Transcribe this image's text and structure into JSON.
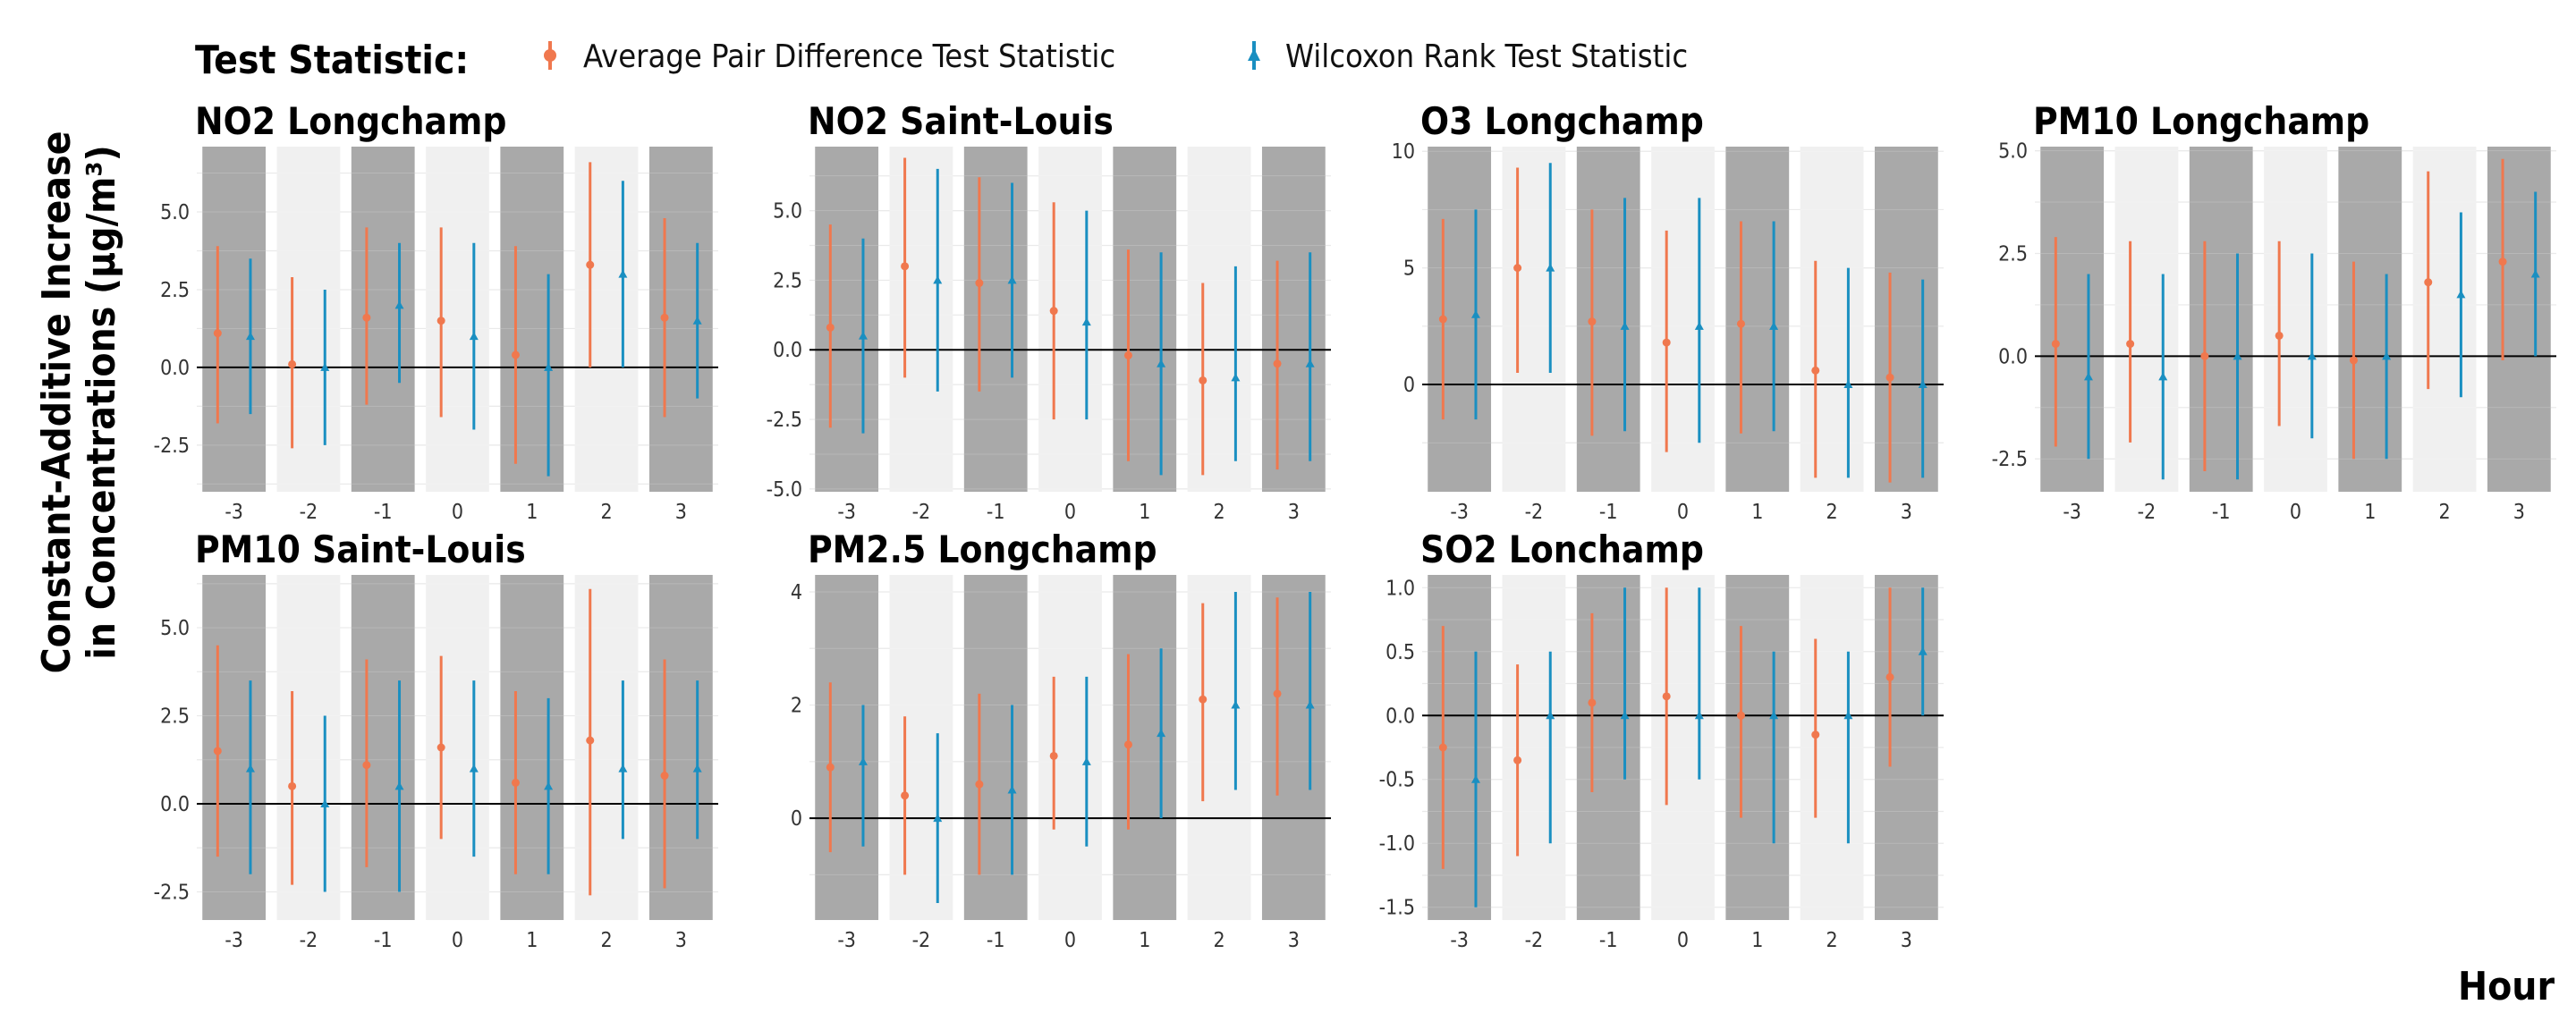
{
  "legend": {
    "title": "Test Statistic:",
    "items": [
      {
        "label": "Average Pair Difference Test Statistic",
        "color": "#F0784E",
        "marker": "circle"
      },
      {
        "label": "Wilcoxon Rank Test Statistic",
        "color": "#1A8FC1",
        "marker": "triangle"
      }
    ]
  },
  "axes": {
    "ylabel_line1": "Constant-Additive Increase",
    "ylabel_line2": "in Concentrations (µg/m³)",
    "xlabel": "Hour"
  },
  "colors": {
    "band_dark": "#A9A9A9",
    "band_light": "#F0F0F0",
    "apd": "#F0784E",
    "wilcoxon": "#1A8FC1"
  },
  "chart_data": [
    {
      "type": "errorbar",
      "title": "NO2 Longchamp",
      "x": [
        "-3",
        "-2",
        "-1",
        "0",
        "1",
        "2",
        "3"
      ],
      "ylim": [
        -4,
        7.1
      ],
      "yticks": [
        -2.5,
        0,
        2.5,
        5
      ],
      "ytick_labels": [
        "-2.5",
        "0.0",
        "2.5",
        "5.0"
      ],
      "series": [
        {
          "name": "Average Pair Difference Test Statistic",
          "estimate": [
            1.1,
            0.1,
            1.6,
            1.5,
            0.4,
            3.3,
            1.6
          ],
          "lower": [
            -1.8,
            -2.6,
            -1.2,
            -1.6,
            -3.1,
            0.0,
            -1.6
          ],
          "upper": [
            3.9,
            2.9,
            4.5,
            4.5,
            3.9,
            6.6,
            4.8
          ]
        },
        {
          "name": "Wilcoxon Rank Test Statistic",
          "estimate": [
            1.0,
            0.0,
            2.0,
            1.0,
            0.0,
            3.0,
            1.5
          ],
          "lower": [
            -1.5,
            -2.5,
            -0.5,
            -2.0,
            -3.5,
            0.0,
            -1.0
          ],
          "upper": [
            3.5,
            2.5,
            4.0,
            4.0,
            3.0,
            6.0,
            4.0
          ]
        }
      ]
    },
    {
      "type": "errorbar",
      "title": "NO2 Saint-Louis",
      "x": [
        "-3",
        "-2",
        "-1",
        "0",
        "1",
        "2",
        "3"
      ],
      "ylim": [
        -5.1,
        7.3
      ],
      "yticks": [
        -5,
        -2.5,
        0,
        2.5,
        5
      ],
      "ytick_labels": [
        "-5.0",
        "-2.5",
        "0.0",
        "2.5",
        "5.0"
      ],
      "series": [
        {
          "name": "Average Pair Difference Test Statistic",
          "estimate": [
            0.8,
            3.0,
            2.4,
            1.4,
            -0.2,
            -1.1,
            -0.5
          ],
          "lower": [
            -2.8,
            -1.0,
            -1.5,
            -2.5,
            -4.0,
            -4.5,
            -4.3
          ],
          "upper": [
            4.5,
            6.9,
            6.2,
            5.3,
            3.6,
            2.4,
            3.2
          ]
        },
        {
          "name": "Wilcoxon Rank Test Statistic",
          "estimate": [
            0.5,
            2.5,
            2.5,
            1.0,
            -0.5,
            -1.0,
            -0.5
          ],
          "lower": [
            -3.0,
            -1.5,
            -1.0,
            -2.5,
            -4.5,
            -4.0,
            -4.0
          ],
          "upper": [
            4.0,
            6.5,
            6.0,
            5.0,
            3.5,
            3.0,
            3.5
          ]
        }
      ]
    },
    {
      "type": "errorbar",
      "title": "O3 Longchamp",
      "x": [
        "-3",
        "-2",
        "-1",
        "0",
        "1",
        "2",
        "3"
      ],
      "ylim": [
        -4.6,
        10.2
      ],
      "yticks": [
        0,
        5,
        10
      ],
      "ytick_labels": [
        "0",
        "5",
        "10"
      ],
      "series": [
        {
          "name": "Average Pair Difference Test Statistic",
          "estimate": [
            2.8,
            5.0,
            2.7,
            1.8,
            2.6,
            0.6,
            0.3
          ],
          "lower": [
            -1.5,
            0.5,
            -2.2,
            -2.9,
            -2.1,
            -4.0,
            -4.2
          ],
          "upper": [
            7.1,
            9.3,
            7.5,
            6.6,
            7.0,
            5.3,
            4.8
          ]
        },
        {
          "name": "Wilcoxon Rank Test Statistic",
          "estimate": [
            3.0,
            5.0,
            2.5,
            2.5,
            2.5,
            0.0,
            0.0
          ],
          "lower": [
            -1.5,
            0.5,
            -2.0,
            -2.5,
            -2.0,
            -4.0,
            -4.0
          ],
          "upper": [
            7.5,
            9.5,
            8.0,
            8.0,
            7.0,
            5.0,
            4.5
          ]
        }
      ]
    },
    {
      "type": "errorbar",
      "title": "PM10 Longchamp",
      "x": [
        "-3",
        "-2",
        "-1",
        "0",
        "1",
        "2",
        "3"
      ],
      "ylim": [
        -3.3,
        5.1
      ],
      "yticks": [
        -2.5,
        0,
        2.5,
        5
      ],
      "ytick_labels": [
        "-2.5",
        "0.0",
        "2.5",
        "5.0"
      ],
      "series": [
        {
          "name": "Average Pair Difference Test Statistic",
          "estimate": [
            0.3,
            0.3,
            0.0,
            0.5,
            -0.1,
            1.8,
            2.3
          ],
          "lower": [
            -2.2,
            -2.1,
            -2.8,
            -1.7,
            -2.5,
            -0.8,
            -0.1
          ],
          "upper": [
            2.9,
            2.8,
            2.8,
            2.8,
            2.3,
            4.5,
            4.8
          ]
        },
        {
          "name": "Wilcoxon Rank Test Statistic",
          "estimate": [
            -0.5,
            -0.5,
            0.0,
            0.0,
            0.0,
            1.5,
            2.0
          ],
          "lower": [
            -2.5,
            -3.0,
            -3.0,
            -2.0,
            -2.5,
            -1.0,
            0.0
          ],
          "upper": [
            2.0,
            2.0,
            2.5,
            2.5,
            2.0,
            3.5,
            4.0
          ]
        }
      ]
    },
    {
      "type": "errorbar",
      "title": "PM10 Saint-Louis",
      "x": [
        "-3",
        "-2",
        "-1",
        "0",
        "1",
        "2",
        "3"
      ],
      "ylim": [
        -3.3,
        6.5
      ],
      "yticks": [
        -2.5,
        0,
        2.5,
        5
      ],
      "ytick_labels": [
        "-2.5",
        "0.0",
        "2.5",
        "5.0"
      ],
      "series": [
        {
          "name": "Average Pair Difference Test Statistic",
          "estimate": [
            1.5,
            0.5,
            1.1,
            1.6,
            0.6,
            1.8,
            0.8
          ],
          "lower": [
            -1.5,
            -2.3,
            -1.8,
            -1.0,
            -2.0,
            -2.6,
            -2.4
          ],
          "upper": [
            4.5,
            3.2,
            4.1,
            4.2,
            3.2,
            6.1,
            4.1
          ]
        },
        {
          "name": "Wilcoxon Rank Test Statistic",
          "estimate": [
            1.0,
            0.0,
            0.5,
            1.0,
            0.5,
            1.0,
            1.0
          ],
          "lower": [
            -2.0,
            -2.5,
            -2.5,
            -1.5,
            -2.0,
            -1.0,
            -1.0
          ],
          "upper": [
            3.5,
            2.5,
            3.5,
            3.5,
            3.0,
            3.5,
            3.5
          ]
        }
      ]
    },
    {
      "type": "errorbar",
      "title": "PM2.5 Longchamp",
      "x": [
        "-3",
        "-2",
        "-1",
        "0",
        "1",
        "2",
        "3"
      ],
      "ylim": [
        -1.8,
        4.3
      ],
      "yticks": [
        0,
        2,
        4
      ],
      "ytick_labels": [
        "0",
        "2",
        "4"
      ],
      "series": [
        {
          "name": "Average Pair Difference Test Statistic",
          "estimate": [
            0.9,
            0.4,
            0.6,
            1.1,
            1.3,
            2.1,
            2.2
          ],
          "lower": [
            -0.6,
            -1.0,
            -1.0,
            -0.2,
            -0.2,
            0.3,
            0.4
          ],
          "upper": [
            2.4,
            1.8,
            2.2,
            2.5,
            2.9,
            3.8,
            3.9
          ]
        },
        {
          "name": "Wilcoxon Rank Test Statistic",
          "estimate": [
            1.0,
            0.0,
            0.5,
            1.0,
            1.5,
            2.0,
            2.0
          ],
          "lower": [
            -0.5,
            -1.5,
            -1.0,
            -0.5,
            0.0,
            0.5,
            0.5
          ],
          "upper": [
            2.0,
            1.5,
            2.0,
            2.5,
            3.0,
            4.0,
            4.0
          ]
        }
      ]
    },
    {
      "type": "errorbar",
      "title": "SO2 Lonchamp",
      "x": [
        "-3",
        "-2",
        "-1",
        "0",
        "1",
        "2",
        "3"
      ],
      "ylim": [
        -1.6,
        1.1
      ],
      "yticks": [
        -1.5,
        -1,
        -0.5,
        0,
        0.5,
        1
      ],
      "ytick_labels": [
        "-1.5",
        "-1.0",
        "-0.5",
        "0.0",
        "0.5",
        "1.0"
      ],
      "series": [
        {
          "name": "Average Pair Difference Test Statistic",
          "estimate": [
            -0.25,
            -0.35,
            0.1,
            0.15,
            0.0,
            -0.15,
            0.3
          ],
          "lower": [
            -1.2,
            -1.1,
            -0.6,
            -0.7,
            -0.8,
            -0.8,
            -0.4
          ],
          "upper": [
            0.7,
            0.4,
            0.8,
            1.0,
            0.7,
            0.6,
            1.0
          ]
        },
        {
          "name": "Wilcoxon Rank Test Statistic",
          "estimate": [
            -0.5,
            0.0,
            0.0,
            0.0,
            0.0,
            0.0,
            0.5
          ],
          "lower": [
            -1.5,
            -1.0,
            -0.5,
            -0.5,
            -1.0,
            -1.0,
            0.0
          ],
          "upper": [
            0.5,
            0.5,
            1.0,
            1.0,
            0.5,
            0.5,
            1.0
          ]
        }
      ]
    }
  ]
}
